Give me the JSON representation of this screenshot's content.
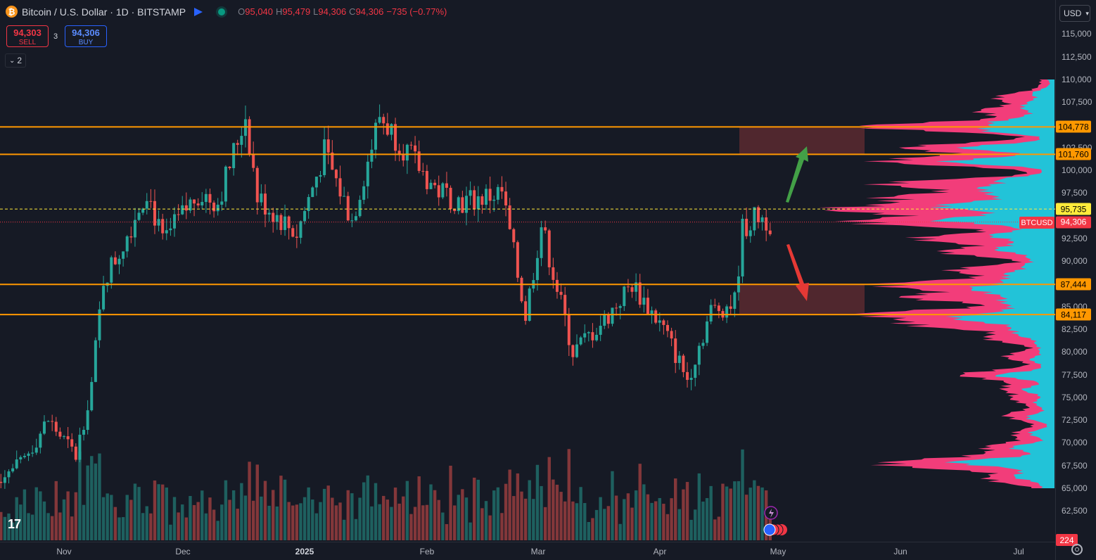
{
  "header": {
    "coin_icon": "₿",
    "symbol_title": "Bitcoin / U.S. Dollar · 1D · BITSTAMP",
    "ohlc": [
      {
        "k": "O",
        "v": "95,040"
      },
      {
        "k": "H",
        "v": "95,479"
      },
      {
        "k": "L",
        "v": "94,306"
      },
      {
        "k": "C",
        "v": "94,306"
      }
    ],
    "change": "−735 (−0.77%)"
  },
  "trade": {
    "sell_price": "94,303",
    "sell_label": "SELL",
    "spread": "3",
    "buy_price": "94,306",
    "buy_label": "BUY"
  },
  "collapse_count": "2",
  "axis": {
    "currency": "USD",
    "ticks": [
      {
        "label": "115,000",
        "v": 115000
      },
      {
        "label": "112,500",
        "v": 112500
      },
      {
        "label": "110,000",
        "v": 110000
      },
      {
        "label": "107,500",
        "v": 107500
      },
      {
        "label": "102,500",
        "v": 102500
      },
      {
        "label": "100,000",
        "v": 100000
      },
      {
        "label": "97,500",
        "v": 97500
      },
      {
        "label": "92,500",
        "v": 92500
      },
      {
        "label": "90,000",
        "v": 90000
      },
      {
        "label": "85,000",
        "v": 85000
      },
      {
        "label": "82,500",
        "v": 82500
      },
      {
        "label": "80,000",
        "v": 80000
      },
      {
        "label": "77,500",
        "v": 77500
      },
      {
        "label": "75,000",
        "v": 75000
      },
      {
        "label": "72,500",
        "v": 72500
      },
      {
        "label": "70,000",
        "v": 70000
      },
      {
        "label": "67,500",
        "v": 67500
      },
      {
        "label": "65,000",
        "v": 65000
      },
      {
        "label": "62,500",
        "v": 62500
      }
    ],
    "tags": [
      {
        "label": "104,778",
        "v": 104778,
        "bg": "#ff9800",
        "fg": "#000000"
      },
      {
        "label": "101,760",
        "v": 101760,
        "bg": "#ff9800",
        "fg": "#000000"
      },
      {
        "label": "95,735",
        "v": 95735,
        "bg": "#ffeb3b",
        "fg": "#000000"
      },
      {
        "label": "94,306",
        "v": 94306,
        "bg": "#f23645",
        "fg": "#ffffff"
      },
      {
        "label": "87,444",
        "v": 87444,
        "bg": "#ff9800",
        "fg": "#000000"
      },
      {
        "label": "84,117",
        "v": 84117,
        "bg": "#ff9800",
        "fg": "#000000"
      }
    ],
    "symbol_tag": "BTCUSD",
    "volume_tag": "224"
  },
  "time_axis": [
    "Nov",
    "Dec",
    "2025",
    "Feb",
    "Mar",
    "Apr",
    "May",
    "Jun",
    "Jul"
  ],
  "logo": "17",
  "colors": {
    "background": "#161a25",
    "up": "#26a69a",
    "down": "#ef5350",
    "level": "#ff9800",
    "zone": "#5b2a30",
    "profile_pink": "#f23d7a",
    "profile_cyan": "#22c3d8",
    "arrow_up": "#43a047",
    "arrow_down": "#e53935"
  },
  "chart_data": {
    "type": "candlestick",
    "symbol": "BTCUSD",
    "timeframe": "1D",
    "y_range": [
      61500,
      116000
    ],
    "horizontal_levels": [
      104778,
      101760,
      87444,
      84117
    ],
    "dashed_level": 95735,
    "last_price": 94306,
    "zones": [
      [
        101760,
        104778
      ],
      [
        84117,
        87444
      ]
    ],
    "price_path": [
      {
        "date": "2024-10-14",
        "close": 66000
      },
      {
        "date": "2024-10-21",
        "close": 67500
      },
      {
        "date": "2024-10-28",
        "close": 72500
      },
      {
        "date": "2024-11-04",
        "close": 68500
      },
      {
        "date": "2024-11-08",
        "close": 76500
      },
      {
        "date": "2024-11-11",
        "close": 88000
      },
      {
        "date": "2024-11-15",
        "close": 91000
      },
      {
        "date": "2024-11-22",
        "close": 98000
      },
      {
        "date": "2024-11-26",
        "close": 92000
      },
      {
        "date": "2024-12-05",
        "close": 97500
      },
      {
        "date": "2024-12-10",
        "close": 96500
      },
      {
        "date": "2024-12-17",
        "close": 106000
      },
      {
        "date": "2024-12-20",
        "close": 97000
      },
      {
        "date": "2024-12-30",
        "close": 93000
      },
      {
        "date": "2025-01-06",
        "close": 102000
      },
      {
        "date": "2025-01-13",
        "close": 94500
      },
      {
        "date": "2025-01-20",
        "close": 106000
      },
      {
        "date": "2025-01-27",
        "close": 102000
      },
      {
        "date": "2025-02-03",
        "close": 98000
      },
      {
        "date": "2025-02-10",
        "close": 96500
      },
      {
        "date": "2025-02-20",
        "close": 97500
      },
      {
        "date": "2025-02-26",
        "close": 84000
      },
      {
        "date": "2025-03-02",
        "close": 94000
      },
      {
        "date": "2025-03-10",
        "close": 80000
      },
      {
        "date": "2025-03-18",
        "close": 83500
      },
      {
        "date": "2025-03-25",
        "close": 87500
      },
      {
        "date": "2025-04-02",
        "close": 82500
      },
      {
        "date": "2025-04-08",
        "close": 77000
      },
      {
        "date": "2025-04-14",
        "close": 84500
      },
      {
        "date": "2025-04-20",
        "close": 85500
      },
      {
        "date": "2025-04-22",
        "close": 93500
      },
      {
        "date": "2025-04-26",
        "close": 95000
      },
      {
        "date": "2025-04-29",
        "close": 94306
      }
    ]
  }
}
